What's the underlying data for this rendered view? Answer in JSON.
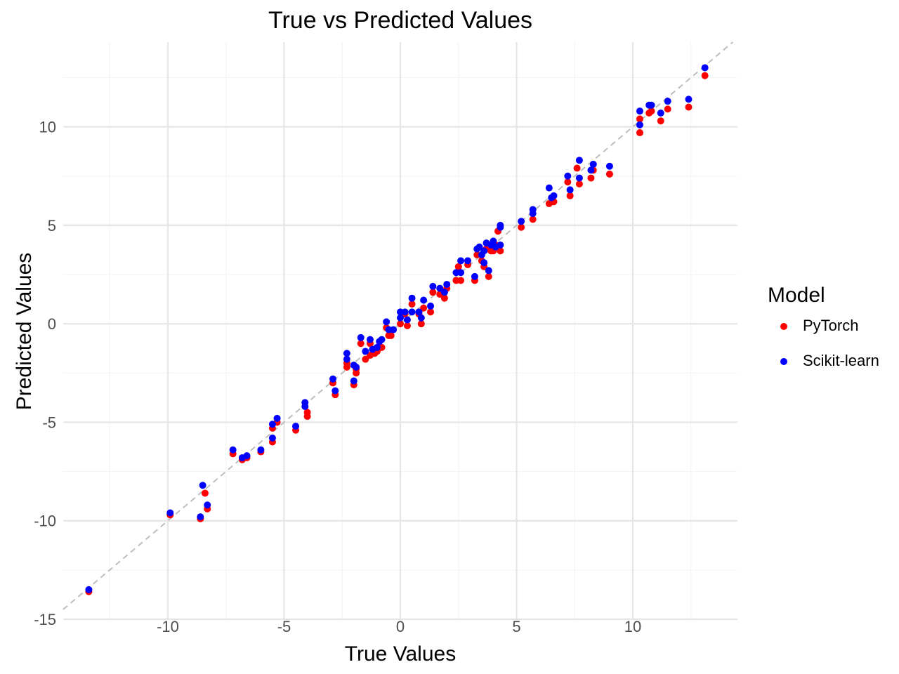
{
  "chart_data": {
    "type": "scatter",
    "title": "True vs Predicted Values",
    "xlabel": "True Values",
    "ylabel": "Predicted Values",
    "xlim": [
      -14.5,
      14.5
    ],
    "ylim": [
      -15,
      14.3
    ],
    "x_ticks": [
      -10,
      -5,
      0,
      5,
      10
    ],
    "y_ticks": [
      -15,
      -10,
      -5,
      0,
      5,
      10
    ],
    "grid": true,
    "reference_line": "y = x (dashed)",
    "legend": {
      "title": "Model",
      "position": "right"
    },
    "series": [
      {
        "name": "PyTorch",
        "color": "#ff0000",
        "points": [
          [
            -13.4,
            -13.6
          ],
          [
            -9.9,
            -9.7
          ],
          [
            -8.6,
            -9.9
          ],
          [
            -8.4,
            -8.6
          ],
          [
            -8.3,
            -9.4
          ],
          [
            -7.2,
            -6.6
          ],
          [
            -6.8,
            -6.9
          ],
          [
            -6.6,
            -6.8
          ],
          [
            -6.0,
            -6.5
          ],
          [
            -5.5,
            -5.3
          ],
          [
            -5.5,
            -6.0
          ],
          [
            -5.3,
            -5.0
          ],
          [
            -4.5,
            -5.4
          ],
          [
            -4.0,
            -4.7
          ],
          [
            -4.0,
            -4.5
          ],
          [
            -2.9,
            -3.0
          ],
          [
            -2.8,
            -3.6
          ],
          [
            -2.3,
            -2.0
          ],
          [
            -2.3,
            -2.2
          ],
          [
            -2.0,
            -3.1
          ],
          [
            -1.9,
            -2.3
          ],
          [
            -1.9,
            -2.5
          ],
          [
            -1.7,
            -1.0
          ],
          [
            -1.5,
            -1.8
          ],
          [
            -1.3,
            -1.0
          ],
          [
            -1.3,
            -1.6
          ],
          [
            -1.1,
            -1.5
          ],
          [
            -1.0,
            -1.4
          ],
          [
            -0.8,
            -1.2
          ],
          [
            -0.6,
            -0.2
          ],
          [
            -0.5,
            -0.6
          ],
          [
            -0.4,
            -0.6
          ],
          [
            0.0,
            0.0
          ],
          [
            0.2,
            0.5
          ],
          [
            0.3,
            -0.1
          ],
          [
            0.5,
            1.0
          ],
          [
            0.8,
            0.5
          ],
          [
            0.9,
            0.0
          ],
          [
            1.0,
            0.8
          ],
          [
            1.3,
            0.6
          ],
          [
            1.4,
            1.6
          ],
          [
            1.7,
            1.5
          ],
          [
            1.9,
            1.3
          ],
          [
            2.0,
            1.8
          ],
          [
            2.4,
            2.2
          ],
          [
            2.5,
            2.9
          ],
          [
            2.6,
            2.2
          ],
          [
            2.9,
            3.0
          ],
          [
            3.2,
            2.2
          ],
          [
            3.3,
            3.5
          ],
          [
            3.5,
            3.2
          ],
          [
            3.6,
            2.9
          ],
          [
            3.7,
            3.8
          ],
          [
            3.8,
            2.4
          ],
          [
            3.9,
            3.7
          ],
          [
            4.0,
            3.7
          ],
          [
            4.1,
            4.0
          ],
          [
            4.2,
            4.7
          ],
          [
            4.3,
            3.7
          ],
          [
            5.2,
            4.9
          ],
          [
            5.7,
            5.3
          ],
          [
            6.4,
            6.1
          ],
          [
            6.6,
            6.2
          ],
          [
            7.2,
            7.2
          ],
          [
            7.3,
            6.5
          ],
          [
            7.6,
            7.9
          ],
          [
            7.7,
            7.1
          ],
          [
            8.2,
            7.4
          ],
          [
            8.3,
            7.8
          ],
          [
            9.0,
            7.6
          ],
          [
            10.3,
            9.7
          ],
          [
            10.3,
            10.4
          ],
          [
            10.7,
            10.7
          ],
          [
            10.8,
            10.8
          ],
          [
            11.2,
            10.3
          ],
          [
            11.5,
            10.9
          ],
          [
            12.4,
            11.0
          ],
          [
            13.1,
            12.6
          ]
        ]
      },
      {
        "name": "Scikit-learn",
        "color": "#0000ff",
        "points": [
          [
            -13.4,
            -13.5
          ],
          [
            -9.9,
            -9.6
          ],
          [
            -8.6,
            -9.8
          ],
          [
            -8.5,
            -8.2
          ],
          [
            -8.3,
            -9.2
          ],
          [
            -7.2,
            -6.4
          ],
          [
            -6.8,
            -6.8
          ],
          [
            -6.6,
            -6.7
          ],
          [
            -6.0,
            -6.4
          ],
          [
            -5.5,
            -5.1
          ],
          [
            -5.5,
            -5.8
          ],
          [
            -5.3,
            -4.8
          ],
          [
            -4.5,
            -5.2
          ],
          [
            -4.1,
            -4.0
          ],
          [
            -4.1,
            -4.2
          ],
          [
            -2.9,
            -2.8
          ],
          [
            -2.8,
            -3.4
          ],
          [
            -2.3,
            -1.5
          ],
          [
            -2.3,
            -1.8
          ],
          [
            -2.0,
            -2.9
          ],
          [
            -2.0,
            -2.1
          ],
          [
            -1.9,
            -2.2
          ],
          [
            -1.7,
            -0.7
          ],
          [
            -1.5,
            -1.4
          ],
          [
            -1.3,
            -0.8
          ],
          [
            -1.2,
            -1.3
          ],
          [
            -1.0,
            -1.2
          ],
          [
            -0.9,
            -0.9
          ],
          [
            -0.8,
            -0.8
          ],
          [
            -0.6,
            0.1
          ],
          [
            -0.5,
            -0.3
          ],
          [
            -0.3,
            -0.3
          ],
          [
            0.0,
            0.3
          ],
          [
            0.0,
            0.6
          ],
          [
            0.2,
            0.6
          ],
          [
            0.3,
            0.2
          ],
          [
            0.5,
            1.3
          ],
          [
            0.5,
            0.6
          ],
          [
            0.8,
            0.6
          ],
          [
            0.9,
            0.3
          ],
          [
            1.0,
            1.2
          ],
          [
            1.3,
            0.9
          ],
          [
            1.4,
            1.9
          ],
          [
            1.7,
            1.8
          ],
          [
            1.9,
            1.6
          ],
          [
            2.0,
            2.0
          ],
          [
            2.4,
            2.6
          ],
          [
            2.6,
            3.2
          ],
          [
            2.6,
            2.6
          ],
          [
            2.9,
            3.2
          ],
          [
            3.2,
            2.4
          ],
          [
            3.3,
            3.8
          ],
          [
            3.4,
            3.9
          ],
          [
            3.5,
            3.5
          ],
          [
            3.6,
            3.7
          ],
          [
            3.6,
            3.1
          ],
          [
            3.7,
            4.1
          ],
          [
            3.8,
            2.7
          ],
          [
            3.9,
            4.0
          ],
          [
            4.0,
            4.2
          ],
          [
            4.1,
            3.9
          ],
          [
            4.3,
            4.9
          ],
          [
            4.3,
            5.0
          ],
          [
            4.3,
            4.0
          ],
          [
            5.2,
            5.2
          ],
          [
            5.7,
            5.8
          ],
          [
            5.7,
            5.6
          ],
          [
            6.4,
            6.9
          ],
          [
            6.5,
            6.4
          ],
          [
            6.6,
            6.5
          ],
          [
            7.2,
            7.5
          ],
          [
            7.3,
            6.8
          ],
          [
            7.7,
            8.3
          ],
          [
            7.7,
            7.4
          ],
          [
            8.2,
            7.8
          ],
          [
            8.3,
            8.1
          ],
          [
            9.0,
            8.0
          ],
          [
            10.3,
            10.8
          ],
          [
            10.3,
            10.1
          ],
          [
            10.7,
            11.1
          ],
          [
            10.8,
            11.1
          ],
          [
            11.2,
            10.7
          ],
          [
            11.5,
            11.3
          ],
          [
            12.4,
            11.4
          ],
          [
            13.1,
            13.0
          ]
        ]
      }
    ]
  }
}
